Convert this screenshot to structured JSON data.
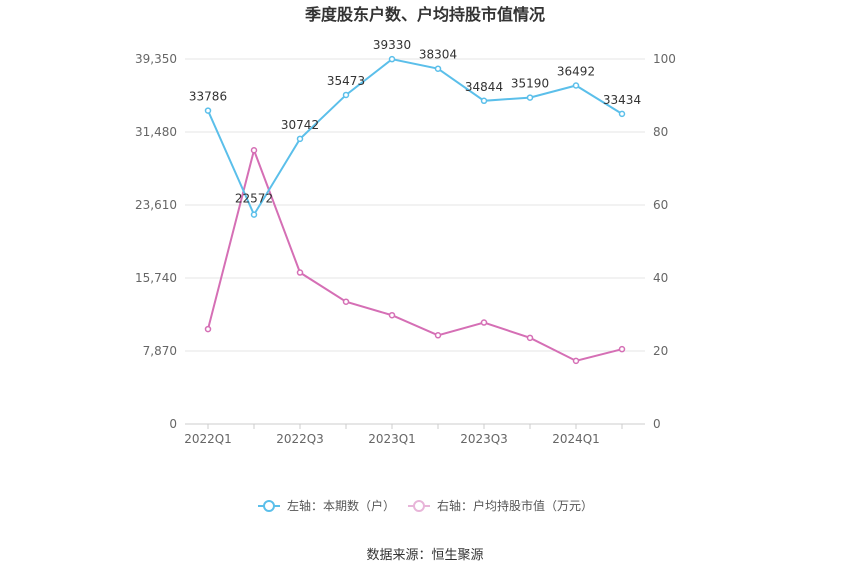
{
  "chart_data": {
    "type": "line",
    "title": "季度股东户数、户均持股市值情况",
    "source": "数据来源：恒生聚源",
    "x_categories": [
      "2022Q1",
      "2022Q2",
      "2022Q3",
      "2022Q4",
      "2023Q1",
      "2023Q2",
      "2023Q3",
      "2023Q4",
      "2024Q1",
      "2024Q2"
    ],
    "x_tick_labels": [
      "2022Q1",
      "",
      "2022Q3",
      "",
      "2023Q1",
      "",
      "2023Q3",
      "",
      "2024Q1",
      ""
    ],
    "y_left": {
      "ticks": [
        0,
        7870,
        15740,
        23610,
        31480,
        39350
      ],
      "tick_labels": [
        "0",
        "7,870",
        "15,740",
        "23,610",
        "31,480",
        "39,350"
      ],
      "range": [
        0,
        39350
      ]
    },
    "y_right": {
      "ticks": [
        0,
        20,
        40,
        60,
        80,
        100
      ],
      "tick_labels": [
        "0",
        "20",
        "40",
        "60",
        "80",
        "100"
      ],
      "range": [
        0,
        100
      ]
    },
    "grid": true,
    "legend_position": "bottom",
    "series": [
      {
        "name": "左轴：本期数（户）",
        "axis": "left",
        "color": "#5bbfea",
        "values": [
          33786,
          22572,
          30742,
          35473,
          39330,
          38304,
          34844,
          35190,
          36492,
          33434
        ],
        "labels": [
          "33786",
          "22572",
          "30742",
          "35473",
          "39330",
          "38304",
          "34844",
          "35190",
          "36492",
          "33434"
        ]
      },
      {
        "name": "右轴：户均持股市值（万元）",
        "axis": "right",
        "color": "#d56fb5",
        "values": [
          26.0,
          75.0,
          41.5,
          33.5,
          29.8,
          24.3,
          27.8,
          23.6,
          17.3,
          20.5
        ]
      }
    ]
  }
}
